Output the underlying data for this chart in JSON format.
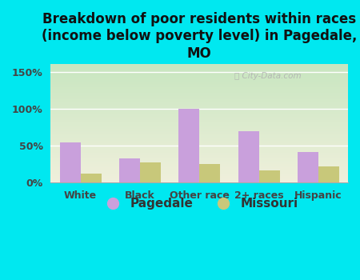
{
  "title": "Breakdown of poor residents within races\n(income below poverty level) in Pagedale,\nMO",
  "categories": [
    "White",
    "Black",
    "Other race",
    "2+ races",
    "Hispanic"
  ],
  "pagedale_values": [
    55,
    33,
    100,
    70,
    42
  ],
  "missouri_values": [
    12,
    27,
    25,
    17,
    22
  ],
  "pagedale_color": "#c9a0dc",
  "missouri_color": "#c8c87a",
  "background_outer": "#00e8f0",
  "background_inner_top": "#c8e6c0",
  "background_inner_bottom": "#f0f0dc",
  "ylim": [
    0,
    160
  ],
  "yticks": [
    0,
    50,
    100,
    150
  ],
  "ytick_labels": [
    "0%",
    "50%",
    "100%",
    "150%"
  ],
  "bar_width": 0.35,
  "title_fontsize": 12,
  "legend_fontsize": 11,
  "watermark": "City-Data.com"
}
